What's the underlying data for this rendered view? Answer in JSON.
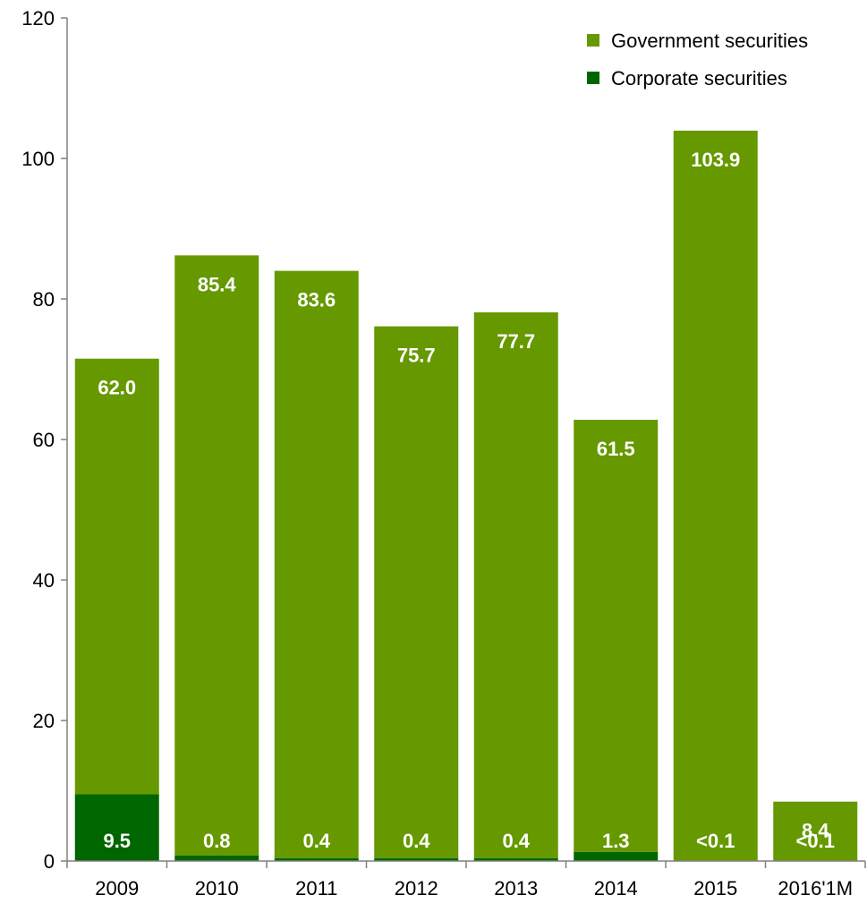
{
  "chart_data": {
    "type": "bar",
    "stacked": true,
    "categories": [
      "2009",
      "2010",
      "2011",
      "2012",
      "2013",
      "2014",
      "2015",
      "2016'1M"
    ],
    "series": [
      {
        "name": "Corporate securities",
        "color": "#006600",
        "values": [
          9.5,
          0.8,
          0.4,
          0.4,
          0.4,
          1.3,
          0.05,
          0.05
        ],
        "labels": [
          "9.5",
          "0.8",
          "0.4",
          "0.4",
          "0.4",
          "1.3",
          "<0.1",
          "<0.1"
        ],
        "label_color": "#ffffff"
      },
      {
        "name": "Government securities",
        "color": "#669900",
        "values": [
          62.0,
          85.4,
          83.6,
          75.7,
          77.7,
          61.5,
          103.9,
          8.4
        ],
        "labels": [
          "62.0",
          "85.4",
          "83.6",
          "75.7",
          "77.7",
          "61.5",
          "103.9",
          "8.4"
        ],
        "label_color": "#ffffff",
        "outside_label_color": "#669900"
      }
    ],
    "title": "",
    "xlabel": "",
    "ylabel": "",
    "ylim": [
      0,
      120
    ],
    "yticks": [
      0,
      20,
      40,
      60,
      80,
      100,
      120
    ],
    "grid": false,
    "legend_position": "top-right"
  }
}
